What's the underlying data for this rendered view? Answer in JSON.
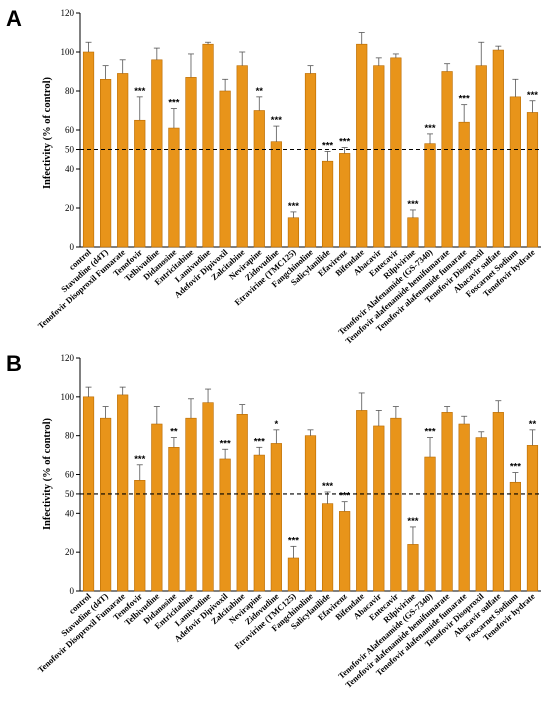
{
  "chart_data": [
    {
      "type": "bar",
      "panel_label": "A",
      "ylabel": "Infectivity (% of  control)",
      "ylim": [
        0,
        120
      ],
      "yticks": [
        0,
        20,
        40,
        50,
        60,
        80,
        100,
        120
      ],
      "reference_line": 50,
      "bar_color": "#E8941A",
      "categories": [
        "control",
        "Stavudine (d4T)",
        "Tenofovir Disoproxil Fumarate",
        "Tenofovir",
        "Telbivudine",
        "Didanosine",
        "Entricitabine",
        "Lamivudine",
        "Adefovir Dipivoxil",
        "Zalcitabine",
        "Nevirapine",
        "Zidovudine",
        "Etravirine (TMC125)",
        "Fangchinoline",
        "Salicylanilide",
        "Efavirenz",
        "Bifendate",
        "Abacavir",
        "Entecavir",
        "Rilpivirine",
        "Tenofovir Alafenamide (GS-7340)",
        "Tenofovir alafenamide hemifumarate",
        "Tenofovir alafenamide fumarate",
        "Tenofovir Disoproxil",
        "Abacavir sulfate",
        "Foscarnet Sodium",
        "Tenofovir hydrate"
      ],
      "values": [
        100,
        86,
        89,
        65,
        96,
        61,
        87,
        104,
        80,
        93,
        70,
        54,
        15,
        89,
        44,
        48,
        104,
        93,
        97,
        15,
        53,
        90,
        64,
        93,
        101,
        77,
        69
      ],
      "errors": [
        5,
        7,
        7,
        12,
        6,
        10,
        12,
        1,
        6,
        7,
        7,
        8,
        3,
        4,
        5,
        3,
        6,
        4,
        2,
        4,
        5,
        4,
        9,
        12,
        2,
        9,
        6
      ],
      "significance": [
        "",
        "",
        "",
        "***",
        "",
        "***",
        "",
        "",
        "",
        "",
        "**",
        "***",
        "***",
        "",
        "***",
        "***",
        "",
        "",
        "",
        "***",
        "***",
        "",
        "***",
        "",
        "",
        "",
        "***"
      ]
    },
    {
      "type": "bar",
      "panel_label": "B",
      "ylabel": "Infectivity (% of  control)",
      "ylim": [
        0,
        120
      ],
      "yticks": [
        0,
        20,
        40,
        50,
        60,
        80,
        100,
        120
      ],
      "reference_line": 50,
      "bar_color": "#E8941A",
      "categories": [
        "control",
        "Stavudine (d4T)",
        "Tenofovir Disoproxil Fumarate",
        "Tenofovir",
        "Telbivudine",
        "Didanosine",
        "Entricitabine",
        "Lamivudine",
        "Adefovir Dipivoxil",
        "Zalcitabine",
        "Nevirapine",
        "Zidovudine",
        "Etravirine (TMC125)",
        "Fangchinoline",
        "Salicylanilide",
        "Efavirenz",
        "Bifendate",
        "Abacavir",
        "Entecavir",
        "Rilpivirine",
        "Tenofovir Alafenamide (GS-7340)",
        "Tenofovir alafenamide hemifumarate",
        "Tenofovir alafenamide fumarate",
        "Tenofovir Disoproxil",
        "Abacavir sulfate",
        "Foscarnet Sodium",
        "Tenofovir hydrate"
      ],
      "values": [
        100,
        89,
        101,
        57,
        86,
        74,
        89,
        97,
        68,
        91,
        70,
        76,
        17,
        80,
        45,
        41,
        93,
        85,
        89,
        24,
        69,
        92,
        86,
        79,
        92,
        56,
        75
      ],
      "errors": [
        5,
        6,
        4,
        8,
        9,
        5,
        10,
        7,
        5,
        5,
        4,
        7,
        6,
        3,
        6,
        5,
        9,
        8,
        6,
        9,
        10,
        3,
        4,
        3,
        6,
        5,
        8
      ],
      "significance": [
        "",
        "",
        "",
        "***",
        "",
        "**",
        "",
        "",
        "***",
        "",
        "***",
        "*",
        "***",
        "",
        "***",
        "***",
        "",
        "",
        "",
        "***",
        "***",
        "",
        "",
        "",
        "",
        "***",
        "**"
      ]
    }
  ]
}
